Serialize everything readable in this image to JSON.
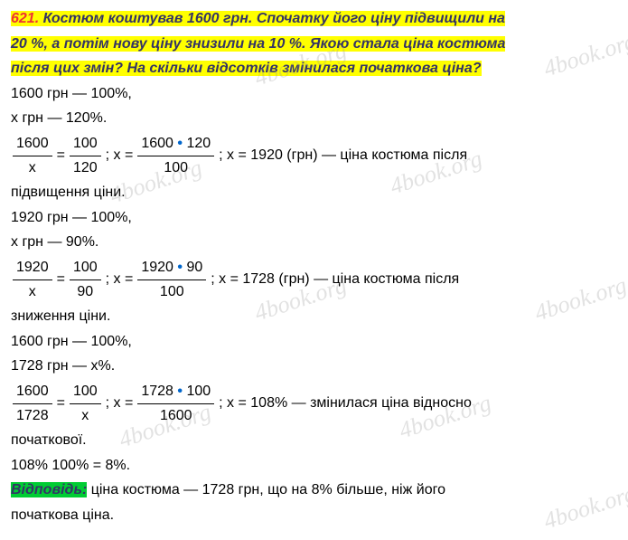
{
  "problem": {
    "number": "621.",
    "text_l1": " Костюм коштував 1600 грн. Спочатку його ціну підвищили на",
    "text_l2": "20 %, а потім нову ціну знизили на 10 %. Якою стала ціна костюма",
    "text_l3": "після цих змін? На скільки відсотків змінилася початкова ціна?"
  },
  "solution": {
    "s1": "1600 грн — 100%,",
    "s2": "x грн — 120%.",
    "eq1": {
      "f1n": "1600",
      "f1d": "x",
      "f2n": "100",
      "f2d": "120",
      "f3n_a": "1600 ",
      "f3n_b": "120",
      "f3d": "100",
      "rest": "; x = 1920 (грн) — ціна костюма після"
    },
    "s3": "підвищення ціни.",
    "s4": "1920 грн — 100%,",
    "s5": "x грн — 90%.",
    "eq2": {
      "f1n": "1920",
      "f1d": "x",
      "f2n": "100",
      "f2d": "90",
      "f3n_a": "1920 ",
      "f3n_b": "90",
      "f3d": "100",
      "rest": ";  x = 1728 (грн) — ціна костюма після"
    },
    "s6": "зниження ціни.",
    "s7": "1600 грн — 100%,",
    "s8": "1728 грн — x%.",
    "eq3": {
      "f1n": "1600",
      "f1d": "1728",
      "f2n": "100",
      "f2d": "x",
      "f3n_a": "1728 ",
      "f3n_b": "100",
      "f3d": "1600",
      "rest": ";   x = 108% — змінилася ціна відносно"
    },
    "s9": "початкової.",
    "s10": "108%  100% = 8%."
  },
  "answer": {
    "label": "Відповідь:",
    "text_a": " ціна костюма — 1728 грн, що на 8% більше, ніж його",
    "text_b": "початкова ціна."
  },
  "watermark": "4book.org",
  "style": {
    "hl_yellow": "#ffff00",
    "hl_green": "#00cc33",
    "number_color": "#ee3333",
    "dot_color": "#0066cc",
    "text_color": "#000000",
    "problem_text_color": "#333366",
    "font_size": 16,
    "watermark_color": "rgba(150,150,150,0.28)"
  }
}
